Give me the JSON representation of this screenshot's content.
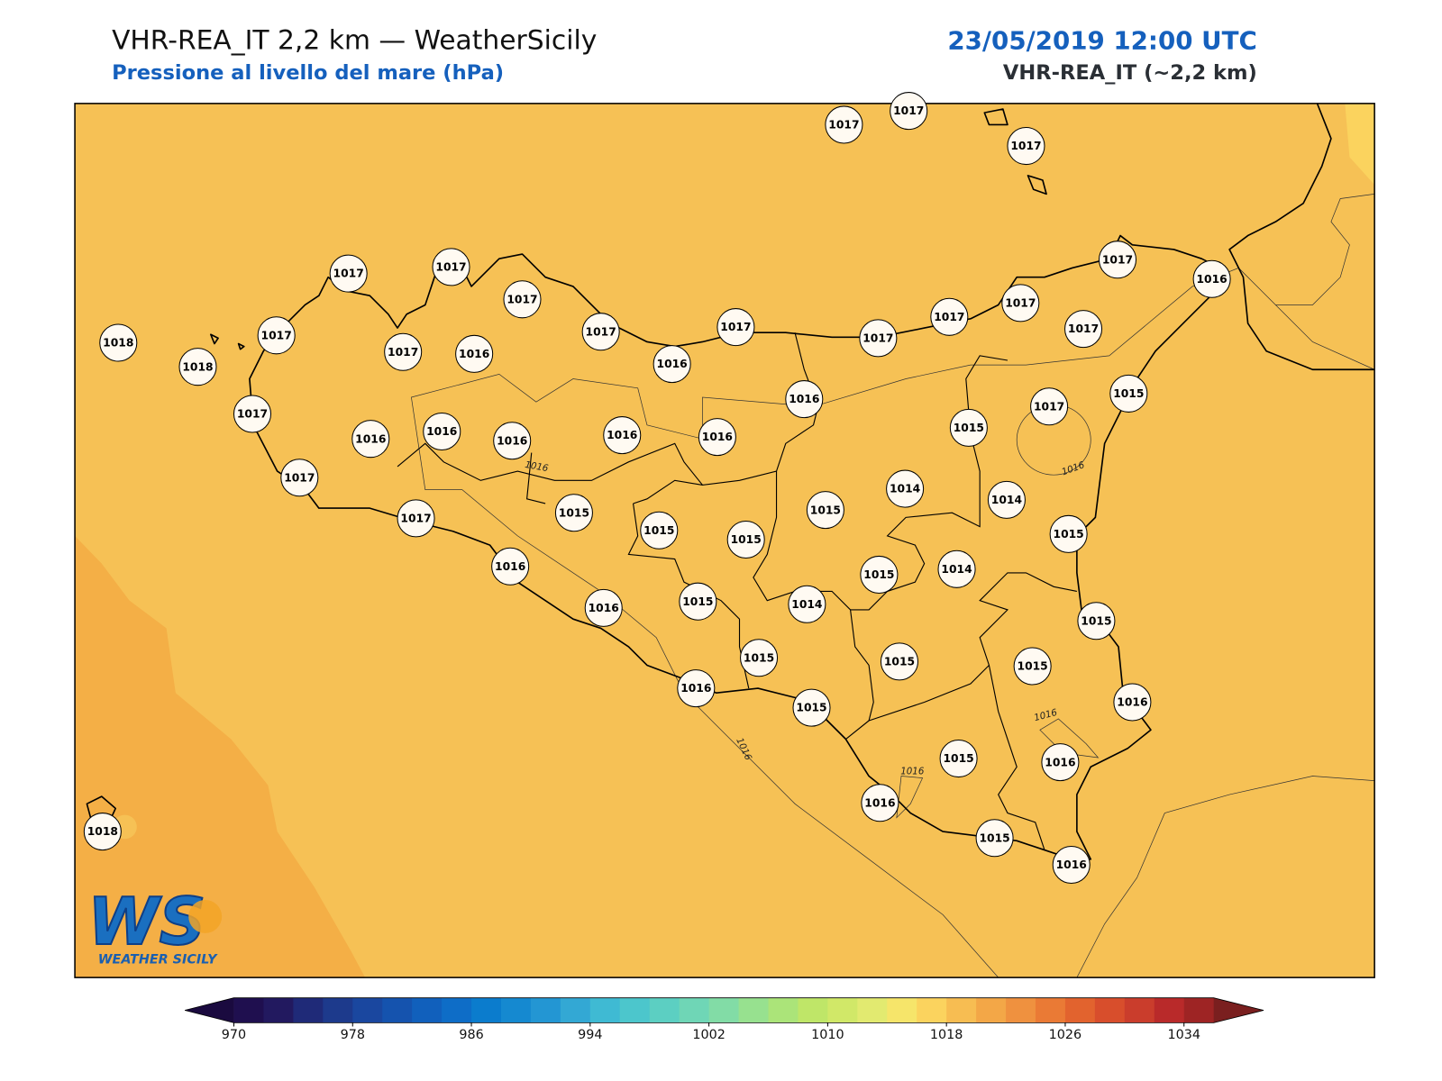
{
  "header": {
    "title": "VHR-REA_IT 2,2 km — WeatherSicily",
    "subtitle": "Pressione al livello del mare (hPa)",
    "datetime": "23/05/2019 12:00 UTC",
    "model": "VHR-REA_IT (~2,2 km)"
  },
  "map": {
    "stations": [
      1017,
      1017,
      1017,
      1018,
      1018,
      1017,
      1017,
      1017,
      1017,
      1017,
      1016,
      1017,
      1017,
      1016,
      1017,
      1017,
      1017,
      1017,
      1017,
      1016,
      1017,
      1016,
      1016,
      1016,
      1016,
      1016,
      1016,
      1015,
      1017,
      1015,
      1017,
      1017,
      1015,
      1015,
      1015,
      1015,
      1014,
      1014,
      1015,
      1016,
      1016,
      1015,
      1014,
      1015,
      1014,
      1015,
      1015,
      1015,
      1015,
      1016,
      1015,
      1016,
      1015,
      1016,
      1016,
      1015,
      1016,
      1018
    ],
    "contour_labels": [
      "1016",
      "1016",
      "1016",
      "1016",
      "1016"
    ]
  },
  "logo": {
    "mark": "WS",
    "text": "WEATHER SICILY"
  },
  "colorbar": {
    "lim": [
      970,
      1036
    ],
    "ticks": [
      970,
      978,
      986,
      994,
      1002,
      1010,
      1018,
      1026,
      1034
    ],
    "colors": [
      "#1f0f4f",
      "#22195f",
      "#1f2a78",
      "#1d3a8c",
      "#1a479f",
      "#1553ae",
      "#1160bc",
      "#0e6dc7",
      "#0b7ccd",
      "#1589d0",
      "#2396d3",
      "#33a8d4",
      "#3fbad3",
      "#4cc6cc",
      "#5ccfc2",
      "#6fd6b6",
      "#82dca6",
      "#97e18f",
      "#abe479",
      "#bfe668",
      "#d1e868",
      "#e2ea70",
      "#f6e56a",
      "#fbd35e",
      "#f7bd52",
      "#f3a747",
      "#ef913f",
      "#ea7a35",
      "#e2632e",
      "#d84e2c",
      "#ca3d2c",
      "#b92a2a",
      "#9e2424"
    ],
    "under": "#1a0a3f",
    "over": "#7a1f1f"
  }
}
